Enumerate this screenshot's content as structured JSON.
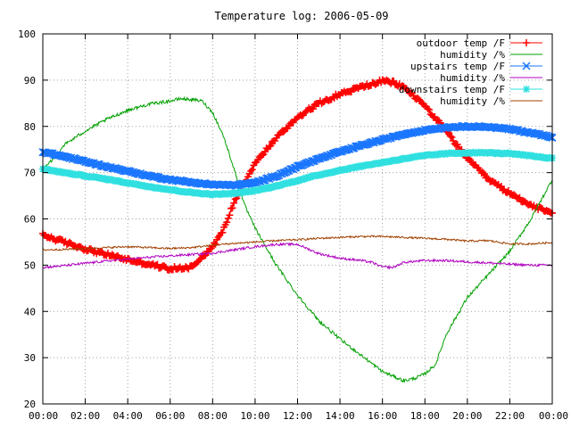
{
  "chart_data": {
    "type": "line",
    "title": "Temperature log: 2006-05-09",
    "xlabel": "",
    "ylabel": "",
    "xlim": [
      0,
      24
    ],
    "ylim": [
      20,
      100
    ],
    "xticks": [
      0,
      2,
      4,
      6,
      8,
      10,
      12,
      14,
      16,
      18,
      20,
      22,
      24
    ],
    "xtick_labels": [
      "00:00",
      "02:00",
      "04:00",
      "06:00",
      "08:00",
      "10:00",
      "12:00",
      "14:00",
      "16:00",
      "18:00",
      "20:00",
      "22:00",
      "00:00"
    ],
    "yticks": [
      20,
      30,
      40,
      50,
      60,
      70,
      80,
      90,
      100
    ],
    "ytick_labels": [
      "20",
      "30",
      "40",
      "50",
      "60",
      "70",
      "80",
      "90",
      "100"
    ],
    "grid": true,
    "legend_position": "top-right",
    "series": [
      {
        "name": "outdoor temp /F",
        "color": "#ff0000",
        "marker": "plus",
        "noise": 0.4,
        "x": [
          0,
          1,
          2,
          3,
          4,
          5,
          6,
          7,
          8,
          8.5,
          9,
          9.5,
          10,
          10.5,
          11,
          12,
          13,
          14,
          15,
          16,
          16.5,
          17,
          18,
          19,
          19.5,
          20,
          21,
          22,
          23,
          24
        ],
        "y": [
          56.5,
          55,
          53.5,
          52.3,
          51.2,
          50.2,
          49.2,
          49.6,
          54,
          57.5,
          63.5,
          68,
          72,
          74.8,
          77.5,
          82,
          85,
          87,
          88.5,
          89.8,
          89.5,
          88.5,
          84.5,
          79,
          76,
          73,
          68.5,
          65.5,
          63,
          61
        ]
      },
      {
        "name": "humidity /%",
        "color": "#00a000",
        "marker": "none",
        "noise": 0.35,
        "x": [
          0,
          0.5,
          1,
          2,
          3,
          4,
          5,
          6,
          6.5,
          7,
          7.5,
          8,
          8.5,
          9,
          9.5,
          10,
          11,
          12,
          13,
          14,
          15,
          16,
          17,
          17.5,
          18,
          18.5,
          19,
          20,
          21,
          22,
          23,
          24
        ],
        "y": [
          70.5,
          73,
          76,
          79,
          81.5,
          83.5,
          84.8,
          85.5,
          86,
          85.8,
          85.5,
          83,
          78,
          71,
          63,
          58,
          50,
          43.5,
          38,
          34,
          30.5,
          27,
          25,
          25.5,
          26.5,
          28.5,
          35,
          43,
          48,
          53,
          60,
          68.5
        ]
      },
      {
        "name": "upstairs temp /F",
        "color": "#1a75ff",
        "marker": "x",
        "noise": 0.15,
        "x": [
          0,
          1,
          2,
          3,
          4,
          5,
          6,
          7,
          8,
          9,
          10,
          11,
          12,
          13,
          14,
          15,
          16,
          17,
          18,
          19,
          20,
          21,
          22,
          23,
          24
        ],
        "y": [
          74.5,
          73.5,
          72.4,
          71.3,
          70.3,
          69.3,
          68.5,
          67.9,
          67.4,
          67.3,
          67.8,
          69.3,
          71.3,
          73,
          74.5,
          75.9,
          77.1,
          78.3,
          79.2,
          79.8,
          80,
          79.9,
          79.4,
          78.6,
          77.7
        ]
      },
      {
        "name": "humidity /%",
        "color": "#b000c0",
        "marker": "none",
        "noise": 0.25,
        "x": [
          0,
          1,
          2,
          3,
          4,
          5,
          6,
          7,
          8,
          9,
          10,
          11,
          12,
          13,
          14,
          15,
          15.5,
          16,
          16.5,
          17,
          18,
          19,
          20,
          21,
          22,
          23,
          24
        ],
        "y": [
          49.5,
          49.9,
          50.4,
          50.9,
          51.3,
          51.7,
          52,
          52.3,
          52.6,
          53.3,
          54,
          54.5,
          54.5,
          52.5,
          51.5,
          51,
          50.6,
          49.6,
          49.5,
          50.6,
          51,
          51,
          50.7,
          50.5,
          50.2,
          50,
          50
        ]
      },
      {
        "name": "downstairs temp /F",
        "color": "#30e0e0",
        "marker": "star",
        "noise": 0.12,
        "x": [
          0,
          1,
          2,
          3,
          4,
          5,
          6,
          7,
          8,
          9,
          10,
          11,
          12,
          13,
          14,
          15,
          16,
          17,
          18,
          19,
          20,
          21,
          22,
          23,
          24
        ],
        "y": [
          70.8,
          70,
          69.3,
          68.6,
          67.8,
          67,
          66.3,
          65.7,
          65.3,
          65.5,
          66.1,
          67.1,
          68.3,
          69.5,
          70.5,
          71.4,
          72.2,
          73,
          73.7,
          74.1,
          74.3,
          74.3,
          74.1,
          73.6,
          73.1
        ]
      },
      {
        "name": "humidity /%",
        "color": "#a04000",
        "marker": "none",
        "noise": 0.2,
        "x": [
          0,
          1,
          2,
          3,
          4,
          5,
          6,
          7,
          8,
          9,
          10,
          11,
          12,
          13,
          14,
          15,
          16,
          17,
          18,
          19,
          20,
          21,
          22,
          23,
          24
        ],
        "y": [
          53.3,
          53.4,
          53.6,
          53.8,
          54,
          53.8,
          53.6,
          53.8,
          54.3,
          54.7,
          55,
          55.3,
          55.5,
          55.8,
          56,
          56.2,
          56.2,
          56,
          55.8,
          55.6,
          55.2,
          55.3,
          54.6,
          54.6,
          54.9
        ]
      }
    ]
  }
}
